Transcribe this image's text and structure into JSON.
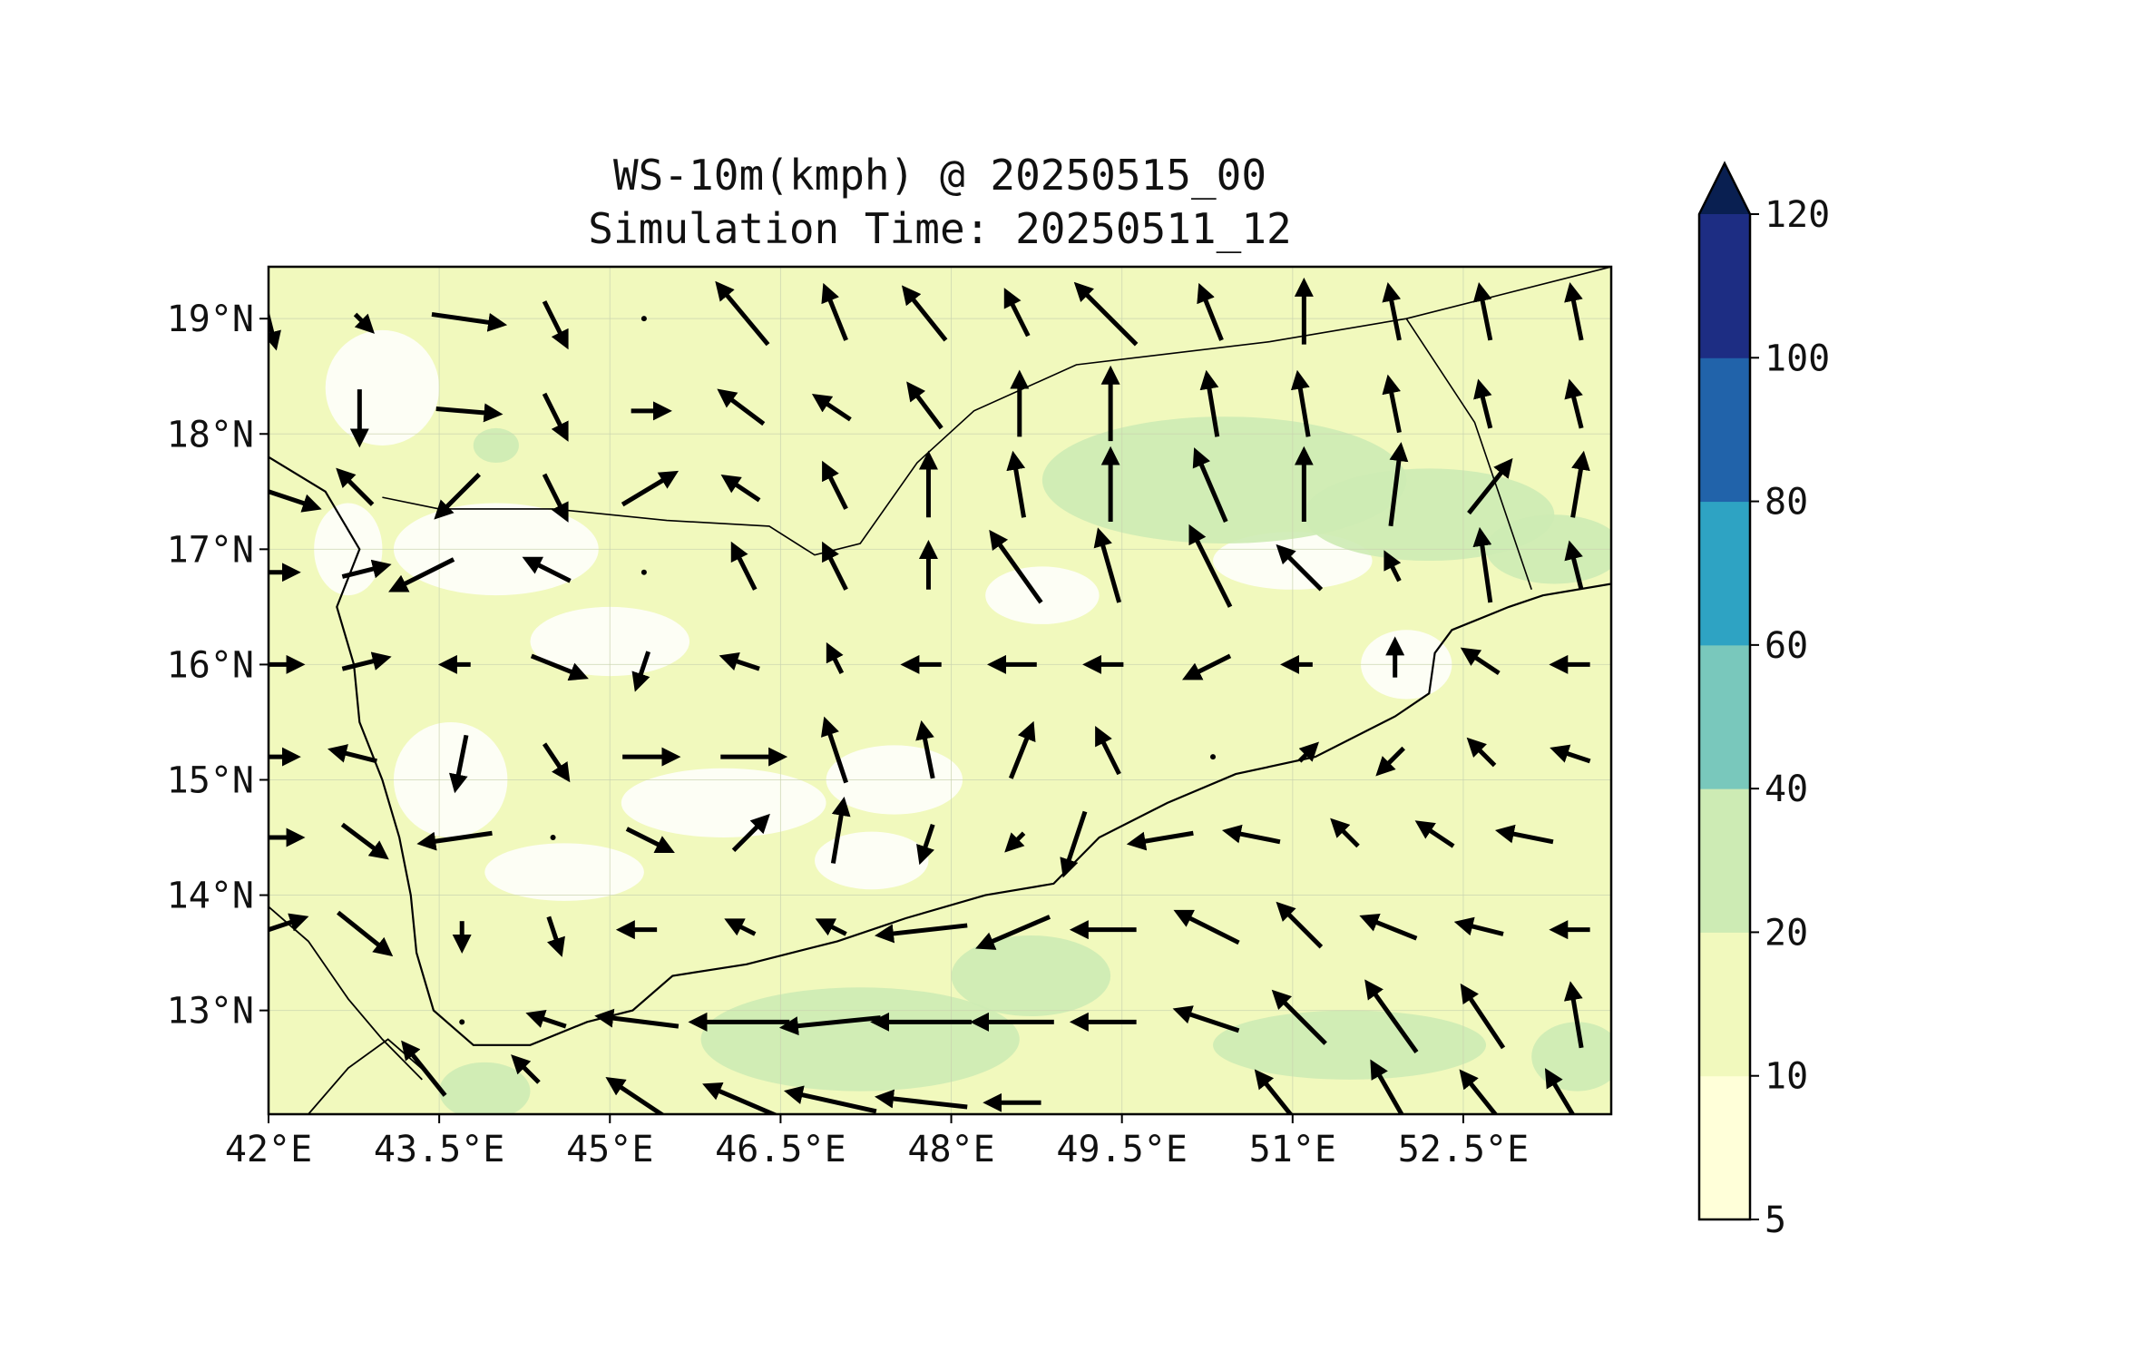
{
  "title": "WS-10m(kmph) @ 20250515_00",
  "subtitle": "Simulation Time: 20250511_12",
  "map": {
    "lon_range": [
      42.0,
      53.8
    ],
    "lat_range": [
      12.1,
      19.45
    ],
    "x_tick_labels": [
      {
        "lon": 42.0,
        "label": "42°E"
      },
      {
        "lon": 43.5,
        "label": "43.5°E"
      },
      {
        "lon": 45.0,
        "label": "45°E"
      },
      {
        "lon": 46.5,
        "label": "46.5°E"
      },
      {
        "lon": 48.0,
        "label": "48°E"
      },
      {
        "lon": 49.5,
        "label": "49.5°E"
      },
      {
        "lon": 51.0,
        "label": "51°E"
      },
      {
        "lon": 52.5,
        "label": "52.5°E"
      }
    ],
    "y_tick_labels": [
      {
        "lat": 19,
        "label": "19°N"
      },
      {
        "lat": 18,
        "label": "18°N"
      },
      {
        "lat": 17,
        "label": "17°N"
      },
      {
        "lat": 16,
        "label": "16°N"
      },
      {
        "lat": 15,
        "label": "15°N"
      },
      {
        "lat": 14,
        "label": "14°N"
      },
      {
        "lat": 13,
        "label": "13°N"
      }
    ],
    "gridlines": true,
    "coastline": [
      [
        42.0,
        17.8
      ],
      [
        42.5,
        17.5
      ],
      [
        42.8,
        17.0
      ],
      [
        42.6,
        16.5
      ],
      [
        42.75,
        16.0
      ],
      [
        42.8,
        15.5
      ],
      [
        43.0,
        15.0
      ],
      [
        43.15,
        14.5
      ],
      [
        43.25,
        14.0
      ],
      [
        43.3,
        13.5
      ],
      [
        43.45,
        13.0
      ],
      [
        43.8,
        12.7
      ],
      [
        44.3,
        12.7
      ],
      [
        44.8,
        12.9
      ],
      [
        45.2,
        13.0
      ],
      [
        45.55,
        13.3
      ],
      [
        46.2,
        13.4
      ],
      [
        47.0,
        13.6
      ],
      [
        47.6,
        13.8
      ],
      [
        48.3,
        14.0
      ],
      [
        48.9,
        14.1
      ],
      [
        49.3,
        14.5
      ],
      [
        49.9,
        14.8
      ],
      [
        50.5,
        15.05
      ],
      [
        51.2,
        15.2
      ],
      [
        51.9,
        15.55
      ],
      [
        52.2,
        15.75
      ],
      [
        52.25,
        16.1
      ],
      [
        52.4,
        16.3
      ],
      [
        52.9,
        16.5
      ],
      [
        53.2,
        16.6
      ],
      [
        53.8,
        16.7
      ]
    ],
    "border_saudi": [
      [
        43.0,
        17.45
      ],
      [
        43.5,
        17.35
      ],
      [
        44.5,
        17.35
      ],
      [
        45.5,
        17.25
      ],
      [
        46.4,
        17.2
      ],
      [
        46.8,
        16.95
      ],
      [
        47.2,
        17.05
      ],
      [
        47.7,
        17.75
      ],
      [
        48.2,
        18.2
      ],
      [
        49.1,
        18.6
      ],
      [
        50.8,
        18.8
      ],
      [
        52.0,
        19.0
      ],
      [
        53.8,
        19.45
      ]
    ],
    "border_oman": [
      [
        52.0,
        19.0
      ],
      [
        52.6,
        18.1
      ],
      [
        53.1,
        16.65
      ]
    ],
    "eritrea_coast": [
      [
        42.0,
        13.9
      ],
      [
        42.35,
        13.6
      ],
      [
        42.7,
        13.1
      ],
      [
        43.0,
        12.75
      ],
      [
        43.35,
        12.4
      ]
    ],
    "djibouti_coast": [
      [
        42.35,
        12.1
      ],
      [
        42.7,
        12.5
      ],
      [
        43.05,
        12.75
      ],
      [
        43.4,
        12.45
      ]
    ]
  },
  "wind_vectors": [
    {
      "lon": 42.0,
      "lat": 19.0,
      "u": 0.1,
      "v": -0.4
    },
    {
      "lon": 42.8,
      "lat": 19.0,
      "u": 0.1,
      "v": -0.1
    },
    {
      "lon": 43.7,
      "lat": 19.0,
      "u": 0.7,
      "v": -0.1
    },
    {
      "lon": 44.5,
      "lat": 19.0,
      "u": 0.2,
      "v": -0.4
    },
    {
      "lon": 45.3,
      "lat": 19.0,
      "u": 0.0,
      "v": 0.0
    },
    {
      "lon": 46.2,
      "lat": 19.0,
      "u": -0.5,
      "v": 0.6
    },
    {
      "lon": 47.0,
      "lat": 19.0,
      "u": -0.2,
      "v": 0.5
    },
    {
      "lon": 47.8,
      "lat": 19.0,
      "u": -0.4,
      "v": 0.5
    },
    {
      "lon": 48.6,
      "lat": 19.0,
      "u": -0.2,
      "v": 0.4
    },
    {
      "lon": 49.4,
      "lat": 19.0,
      "u": -0.6,
      "v": 0.6
    },
    {
      "lon": 50.3,
      "lat": 19.0,
      "u": -0.2,
      "v": 0.5
    },
    {
      "lon": 51.1,
      "lat": 19.0,
      "u": 0.0,
      "v": 0.6
    },
    {
      "lon": 51.9,
      "lat": 19.0,
      "u": -0.1,
      "v": 0.5
    },
    {
      "lon": 52.7,
      "lat": 19.0,
      "u": -0.1,
      "v": 0.5
    },
    {
      "lon": 53.5,
      "lat": 19.0,
      "u": -0.1,
      "v": 0.5
    },
    {
      "lon": 42.8,
      "lat": 18.2,
      "u": 0.0,
      "v": -0.5
    },
    {
      "lon": 43.7,
      "lat": 18.2,
      "u": 0.6,
      "v": -0.05
    },
    {
      "lon": 44.5,
      "lat": 18.2,
      "u": 0.2,
      "v": -0.4
    },
    {
      "lon": 45.3,
      "lat": 18.2,
      "u": 0.3,
      "v": 0.0
    },
    {
      "lon": 46.2,
      "lat": 18.2,
      "u": -0.4,
      "v": 0.3
    },
    {
      "lon": 47.0,
      "lat": 18.2,
      "u": -0.3,
      "v": 0.2
    },
    {
      "lon": 47.8,
      "lat": 18.2,
      "u": -0.3,
      "v": 0.4
    },
    {
      "lon": 48.6,
      "lat": 18.2,
      "u": 0.0,
      "v": 0.6
    },
    {
      "lon": 49.4,
      "lat": 18.2,
      "u": 0.0,
      "v": 0.7
    },
    {
      "lon": 50.3,
      "lat": 18.2,
      "u": -0.1,
      "v": 0.6
    },
    {
      "lon": 51.1,
      "lat": 18.2,
      "u": -0.1,
      "v": 0.6
    },
    {
      "lon": 51.9,
      "lat": 18.2,
      "u": -0.1,
      "v": 0.5
    },
    {
      "lon": 52.7,
      "lat": 18.2,
      "u": -0.1,
      "v": 0.4
    },
    {
      "lon": 53.5,
      "lat": 18.2,
      "u": -0.1,
      "v": 0.4
    },
    {
      "lon": 42.0,
      "lat": 17.5,
      "u": 0.9,
      "v": -0.3
    },
    {
      "lon": 42.8,
      "lat": 17.5,
      "u": -0.3,
      "v": 0.3
    },
    {
      "lon": 43.7,
      "lat": 17.5,
      "u": -0.4,
      "v": -0.4
    },
    {
      "lon": 44.5,
      "lat": 17.5,
      "u": 0.2,
      "v": -0.4
    },
    {
      "lon": 45.3,
      "lat": 17.5,
      "u": 0.5,
      "v": 0.3
    },
    {
      "lon": 46.2,
      "lat": 17.5,
      "u": -0.3,
      "v": 0.2
    },
    {
      "lon": 47.0,
      "lat": 17.5,
      "u": -0.2,
      "v": 0.4
    },
    {
      "lon": 47.8,
      "lat": 17.5,
      "u": 0.0,
      "v": 0.6
    },
    {
      "lon": 48.6,
      "lat": 17.5,
      "u": -0.1,
      "v": 0.6
    },
    {
      "lon": 49.4,
      "lat": 17.5,
      "u": 0.0,
      "v": 0.7
    },
    {
      "lon": 50.3,
      "lat": 17.5,
      "u": -0.3,
      "v": 0.7
    },
    {
      "lon": 51.1,
      "lat": 17.5,
      "u": 0.0,
      "v": 0.7
    },
    {
      "lon": 51.9,
      "lat": 17.5,
      "u": 0.1,
      "v": 0.8
    },
    {
      "lon": 52.7,
      "lat": 17.5,
      "u": 0.4,
      "v": 0.5
    },
    {
      "lon": 53.5,
      "lat": 17.5,
      "u": 0.1,
      "v": 0.6
    },
    {
      "lon": 42.0,
      "lat": 16.8,
      "u": 0.4,
      "v": 0.0
    },
    {
      "lon": 42.8,
      "lat": 16.8,
      "u": 0.4,
      "v": 0.1
    },
    {
      "lon": 43.4,
      "lat": 16.8,
      "u": -0.6,
      "v": -0.3
    },
    {
      "lon": 44.5,
      "lat": 16.8,
      "u": -0.4,
      "v": 0.2
    },
    {
      "lon": 45.3,
      "lat": 16.8,
      "u": 0.0,
      "v": 0.0
    },
    {
      "lon": 46.2,
      "lat": 16.8,
      "u": -0.2,
      "v": 0.4
    },
    {
      "lon": 47.0,
      "lat": 16.8,
      "u": -0.2,
      "v": 0.4
    },
    {
      "lon": 47.8,
      "lat": 16.8,
      "u": 0.0,
      "v": 0.4
    },
    {
      "lon": 48.6,
      "lat": 16.8,
      "u": -0.5,
      "v": 0.7
    },
    {
      "lon": 49.4,
      "lat": 16.8,
      "u": -0.2,
      "v": 0.7
    },
    {
      "lon": 50.3,
      "lat": 16.8,
      "u": -0.4,
      "v": 0.8
    },
    {
      "lon": 51.1,
      "lat": 16.8,
      "u": -0.4,
      "v": 0.4
    },
    {
      "lon": 51.9,
      "lat": 16.8,
      "u": -0.1,
      "v": 0.2
    },
    {
      "lon": 52.7,
      "lat": 16.8,
      "u": -0.1,
      "v": 0.7
    },
    {
      "lon": 53.5,
      "lat": 16.8,
      "u": -0.1,
      "v": 0.4
    },
    {
      "lon": 42.0,
      "lat": 16.0,
      "u": 0.5,
      "v": 0.0
    },
    {
      "lon": 42.8,
      "lat": 16.0,
      "u": 0.4,
      "v": 0.1
    },
    {
      "lon": 43.7,
      "lat": 16.0,
      "u": -0.2,
      "v": 0.0
    },
    {
      "lon": 44.5,
      "lat": 16.0,
      "u": 0.5,
      "v": -0.2
    },
    {
      "lon": 45.3,
      "lat": 16.0,
      "u": -0.1,
      "v": -0.3
    },
    {
      "lon": 46.2,
      "lat": 16.0,
      "u": -0.3,
      "v": 0.1
    },
    {
      "lon": 47.0,
      "lat": 16.0,
      "u": -0.1,
      "v": 0.2
    },
    {
      "lon": 47.8,
      "lat": 16.0,
      "u": -0.3,
      "v": 0.0
    },
    {
      "lon": 48.6,
      "lat": 16.0,
      "u": -0.4,
      "v": 0.0
    },
    {
      "lon": 49.4,
      "lat": 16.0,
      "u": -0.3,
      "v": 0.0
    },
    {
      "lon": 50.3,
      "lat": 16.0,
      "u": -0.4,
      "v": -0.2
    },
    {
      "lon": 51.1,
      "lat": 16.0,
      "u": -0.2,
      "v": 0.0
    },
    {
      "lon": 51.9,
      "lat": 16.0,
      "u": 0.0,
      "v": 0.3
    },
    {
      "lon": 52.7,
      "lat": 16.0,
      "u": -0.3,
      "v": 0.2
    },
    {
      "lon": 53.5,
      "lat": 16.0,
      "u": -0.3,
      "v": 0.0
    },
    {
      "lon": 42.0,
      "lat": 15.2,
      "u": 0.4,
      "v": 0.0
    },
    {
      "lon": 42.8,
      "lat": 15.2,
      "u": -0.4,
      "v": 0.1
    },
    {
      "lon": 43.7,
      "lat": 15.2,
      "u": -0.1,
      "v": -0.5
    },
    {
      "lon": 44.5,
      "lat": 15.2,
      "u": 0.2,
      "v": -0.3
    },
    {
      "lon": 45.3,
      "lat": 15.2,
      "u": 0.5,
      "v": 0.0
    },
    {
      "lon": 46.2,
      "lat": 15.2,
      "u": 0.6,
      "v": 0.0
    },
    {
      "lon": 47.0,
      "lat": 15.2,
      "u": -0.2,
      "v": 0.6
    },
    {
      "lon": 47.8,
      "lat": 15.2,
      "u": -0.1,
      "v": 0.5
    },
    {
      "lon": 48.6,
      "lat": 15.2,
      "u": 0.2,
      "v": 0.5
    },
    {
      "lon": 49.4,
      "lat": 15.2,
      "u": -0.2,
      "v": 0.4
    },
    {
      "lon": 50.3,
      "lat": 15.2,
      "u": 0.0,
      "v": 0.0
    },
    {
      "lon": 51.1,
      "lat": 15.2,
      "u": 0.1,
      "v": 0.1
    },
    {
      "lon": 51.9,
      "lat": 15.2,
      "u": -0.2,
      "v": -0.2
    },
    {
      "lon": 52.7,
      "lat": 15.2,
      "u": -0.2,
      "v": 0.2
    },
    {
      "lon": 53.5,
      "lat": 15.2,
      "u": -0.3,
      "v": 0.1
    },
    {
      "lon": 42.0,
      "lat": 14.5,
      "u": 0.5,
      "v": 0.0
    },
    {
      "lon": 42.8,
      "lat": 14.5,
      "u": 0.4,
      "v": -0.3
    },
    {
      "lon": 43.7,
      "lat": 14.5,
      "u": -0.7,
      "v": -0.1
    },
    {
      "lon": 44.5,
      "lat": 14.5,
      "u": 0.0,
      "v": 0.0
    },
    {
      "lon": 45.3,
      "lat": 14.5,
      "u": 0.4,
      "v": -0.2
    },
    {
      "lon": 46.2,
      "lat": 14.5,
      "u": 0.3,
      "v": 0.3
    },
    {
      "lon": 47.0,
      "lat": 14.5,
      "u": 0.1,
      "v": 0.6
    },
    {
      "lon": 47.8,
      "lat": 14.5,
      "u": -0.1,
      "v": -0.3
    },
    {
      "lon": 48.6,
      "lat": 14.5,
      "u": -0.1,
      "v": -0.1
    },
    {
      "lon": 49.1,
      "lat": 14.5,
      "u": -0.2,
      "v": -0.6
    },
    {
      "lon": 49.9,
      "lat": 14.5,
      "u": -0.6,
      "v": -0.1
    },
    {
      "lon": 50.7,
      "lat": 14.5,
      "u": -0.5,
      "v": 0.1
    },
    {
      "lon": 51.5,
      "lat": 14.5,
      "u": -0.2,
      "v": 0.2
    },
    {
      "lon": 52.3,
      "lat": 14.5,
      "u": -0.3,
      "v": 0.2
    },
    {
      "lon": 53.1,
      "lat": 14.5,
      "u": -0.5,
      "v": 0.1
    },
    {
      "lon": 42.0,
      "lat": 13.7,
      "u": 0.6,
      "v": 0.2
    },
    {
      "lon": 42.8,
      "lat": 13.7,
      "u": 0.5,
      "v": -0.4
    },
    {
      "lon": 43.7,
      "lat": 13.7,
      "u": 0.0,
      "v": -0.2
    },
    {
      "lon": 44.5,
      "lat": 13.7,
      "u": 0.1,
      "v": -0.3
    },
    {
      "lon": 45.3,
      "lat": 13.7,
      "u": -0.3,
      "v": 0.0
    },
    {
      "lon": 46.2,
      "lat": 13.7,
      "u": -0.2,
      "v": 0.1
    },
    {
      "lon": 47.0,
      "lat": 13.7,
      "u": -0.2,
      "v": 0.1
    },
    {
      "lon": 47.8,
      "lat": 13.7,
      "u": -0.9,
      "v": -0.1
    },
    {
      "lon": 48.6,
      "lat": 13.7,
      "u": -0.7,
      "v": -0.3
    },
    {
      "lon": 49.4,
      "lat": 13.7,
      "u": -0.6,
      "v": 0.0
    },
    {
      "lon": 50.3,
      "lat": 13.7,
      "u": -0.6,
      "v": 0.3
    },
    {
      "lon": 51.1,
      "lat": 13.7,
      "u": -0.4,
      "v": 0.4
    },
    {
      "lon": 51.9,
      "lat": 13.7,
      "u": -0.5,
      "v": 0.2
    },
    {
      "lon": 52.7,
      "lat": 13.7,
      "u": -0.4,
      "v": 0.1
    },
    {
      "lon": 53.5,
      "lat": 13.7,
      "u": -0.3,
      "v": 0.0
    },
    {
      "lon": 43.7,
      "lat": 12.9,
      "u": 0.0,
      "v": 0.0
    },
    {
      "lon": 44.5,
      "lat": 12.9,
      "u": -0.3,
      "v": 0.1
    },
    {
      "lon": 45.3,
      "lat": 12.9,
      "u": -0.8,
      "v": 0.1
    },
    {
      "lon": 46.2,
      "lat": 12.9,
      "u": -1.0,
      "v": 0.0
    },
    {
      "lon": 47.0,
      "lat": 12.9,
      "u": -1.0,
      "v": -0.1
    },
    {
      "lon": 47.8,
      "lat": 12.9,
      "u": -1.0,
      "v": 0.0
    },
    {
      "lon": 48.6,
      "lat": 12.9,
      "u": -0.8,
      "v": 0.0
    },
    {
      "lon": 49.4,
      "lat": 12.9,
      "u": -0.6,
      "v": 0.0
    },
    {
      "lon": 50.3,
      "lat": 12.9,
      "u": -0.6,
      "v": 0.2
    },
    {
      "lon": 51.1,
      "lat": 12.9,
      "u": -0.5,
      "v": 0.5
    },
    {
      "lon": 51.9,
      "lat": 12.9,
      "u": -0.5,
      "v": 0.7
    },
    {
      "lon": 52.7,
      "lat": 12.9,
      "u": -0.4,
      "v": 0.6
    },
    {
      "lon": 53.5,
      "lat": 12.9,
      "u": -0.1,
      "v": 0.6
    },
    {
      "lon": 43.4,
      "lat": 12.45,
      "u": -0.4,
      "v": 0.5
    },
    {
      "lon": 44.3,
      "lat": 12.45,
      "u": -0.2,
      "v": 0.2
    },
    {
      "lon": 45.3,
      "lat": 12.2,
      "u": -0.6,
      "v": 0.4
    },
    {
      "lon": 46.2,
      "lat": 12.2,
      "u": -0.7,
      "v": 0.3
    },
    {
      "lon": 47.0,
      "lat": 12.2,
      "u": -0.9,
      "v": 0.2
    },
    {
      "lon": 47.8,
      "lat": 12.2,
      "u": -0.9,
      "v": 0.1
    },
    {
      "lon": 48.6,
      "lat": 12.2,
      "u": -0.5,
      "v": 0.0
    },
    {
      "lon": 50.9,
      "lat": 12.2,
      "u": -0.4,
      "v": 0.5
    },
    {
      "lon": 51.9,
      "lat": 12.2,
      "u": -0.4,
      "v": 0.7
    },
    {
      "lon": 52.7,
      "lat": 12.2,
      "u": -0.4,
      "v": 0.5
    },
    {
      "lon": 53.4,
      "lat": 12.2,
      "u": -0.3,
      "v": 0.5
    }
  ],
  "colorbar": {
    "levels": [
      "5",
      "10",
      "20",
      "40",
      "60",
      "80",
      "100",
      "120"
    ],
    "colors": [
      "#ffffd9",
      "#f1f9bd",
      "#cdebb4",
      "#79c8bc",
      "#2ea3c3",
      "#2163aa",
      "#1d2d83"
    ],
    "extend_color": "#091f51",
    "extend": "max"
  },
  "field_colors": {
    "low": "#f1f9bd",
    "white": "#ffffff",
    "mid": "#cdebb4"
  }
}
